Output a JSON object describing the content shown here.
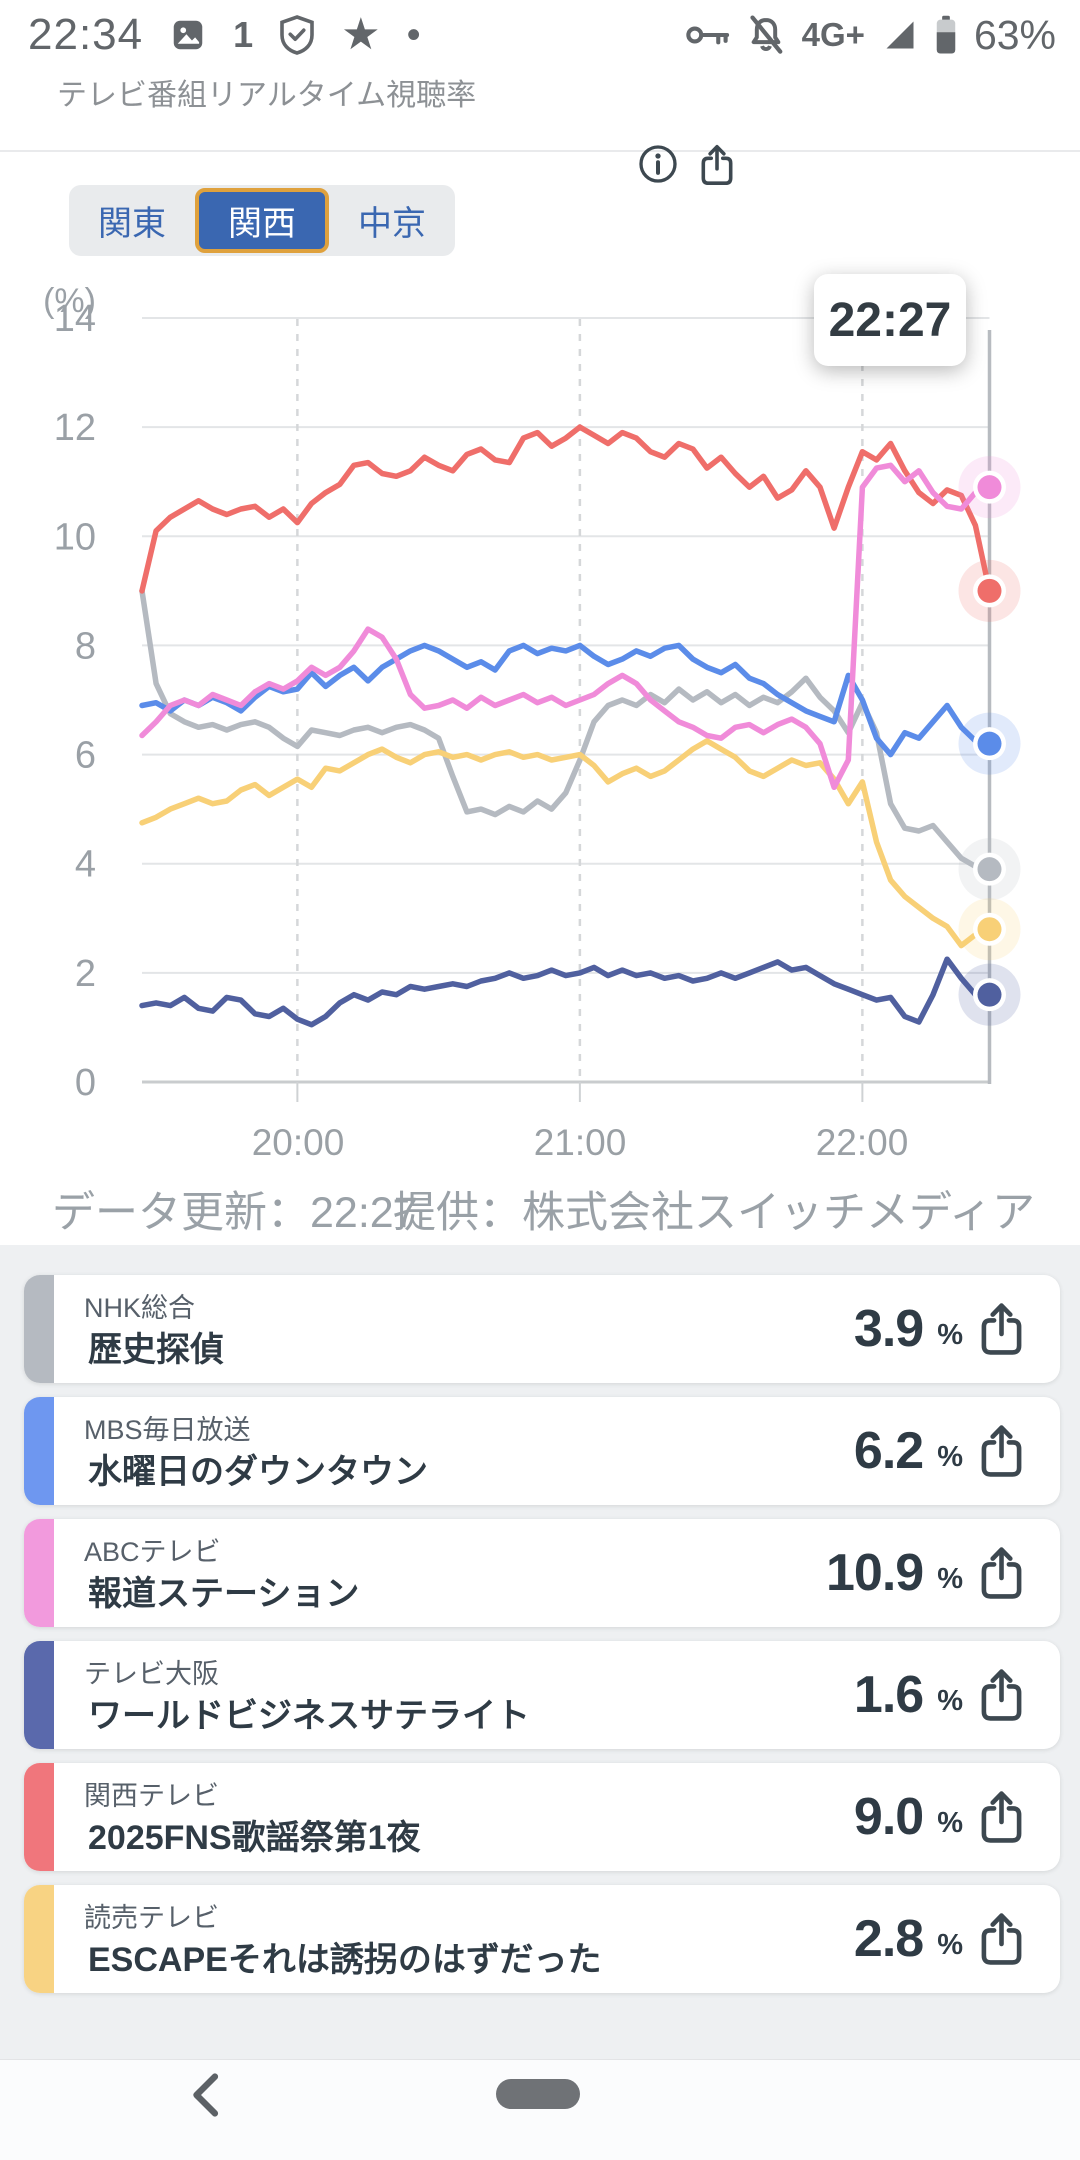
{
  "status_bar": {
    "time": "22:34",
    "network": "4G+",
    "battery": "63%",
    "left_icons": [
      "photo-icon",
      "one-badge-icon",
      "shield-check-icon",
      "star-icon",
      "dot-icon"
    ],
    "right_icons": [
      "key-icon",
      "notifications-off-icon",
      "signal-icon",
      "battery-icon"
    ]
  },
  "header": {
    "title": "テレビ番組リアルタイム視聴率"
  },
  "tabs": {
    "items": [
      {
        "label": "関東",
        "selected": false
      },
      {
        "label": "関西",
        "selected": true
      },
      {
        "label": "中京",
        "selected": false
      }
    ],
    "selected_bg": "#3a67b1",
    "selected_border": "#dfa13d"
  },
  "chart": {
    "unit_label": "(%)",
    "tooltip_time": "22:27",
    "y_tick_labels": [
      "14",
      "12",
      "10",
      "8",
      "6",
      "4",
      "2",
      "0"
    ],
    "x_tick_labels": [
      "20:00",
      "21:00",
      "22:00"
    ],
    "footer": {
      "updated": "データ更新：22:27",
      "provider": "提供：株式会社スイッチメディア"
    }
  },
  "chart_data": {
    "type": "line",
    "title": "テレビ番組リアルタイム視聴率（関西）",
    "ylabel": "(%)",
    "ylim": [
      0,
      14
    ],
    "y_ticks": [
      0,
      2,
      4,
      6,
      8,
      10,
      12,
      14
    ],
    "x_start": "19:27",
    "x_end": "22:27",
    "x_interval_min": 3,
    "x_axis_ticks": [
      "20:00",
      "21:00",
      "22:00"
    ],
    "x_gridline_minutes": [
      33,
      93,
      153
    ],
    "grid": true,
    "legend_position": "none",
    "cursor_time": "22:27",
    "series": [
      {
        "name": "NHK総合",
        "color": "#b5bac1",
        "values": [
          9.0,
          7.3,
          6.75,
          6.6,
          6.5,
          6.55,
          6.45,
          6.55,
          6.6,
          6.5,
          6.3,
          6.15,
          6.45,
          6.4,
          6.35,
          6.45,
          6.5,
          6.4,
          6.5,
          6.55,
          6.45,
          6.3,
          5.6,
          4.95,
          5.0,
          4.9,
          5.05,
          4.95,
          5.15,
          5.0,
          5.3,
          5.9,
          6.6,
          6.9,
          7.0,
          6.9,
          7.1,
          6.95,
          7.2,
          7.0,
          7.15,
          6.95,
          7.1,
          6.9,
          7.05,
          6.95,
          7.15,
          7.4,
          7.05,
          6.8,
          6.4,
          6.95,
          6.4,
          5.1,
          4.65,
          4.6,
          4.7,
          4.4,
          4.1,
          3.95,
          3.9
        ]
      },
      {
        "name": "読売テレビ",
        "color": "#f8d077",
        "values": [
          4.75,
          4.85,
          5.0,
          5.1,
          5.2,
          5.1,
          5.15,
          5.35,
          5.45,
          5.25,
          5.4,
          5.55,
          5.4,
          5.75,
          5.7,
          5.85,
          6.0,
          6.1,
          5.95,
          5.85,
          6.0,
          6.05,
          5.95,
          6.0,
          5.9,
          6.0,
          6.05,
          5.95,
          6.0,
          5.9,
          5.95,
          6.0,
          5.8,
          5.5,
          5.65,
          5.75,
          5.6,
          5.7,
          5.9,
          6.1,
          6.25,
          6.1,
          5.95,
          5.7,
          5.6,
          5.75,
          5.9,
          5.8,
          5.85,
          5.55,
          5.1,
          5.5,
          4.4,
          3.7,
          3.4,
          3.2,
          3.0,
          2.85,
          2.5,
          2.7,
          2.8
        ]
      },
      {
        "name": "テレビ大阪",
        "color": "#50609f",
        "values": [
          1.4,
          1.45,
          1.4,
          1.55,
          1.35,
          1.3,
          1.55,
          1.5,
          1.25,
          1.2,
          1.35,
          1.15,
          1.05,
          1.2,
          1.45,
          1.6,
          1.5,
          1.65,
          1.6,
          1.75,
          1.7,
          1.75,
          1.8,
          1.75,
          1.85,
          1.9,
          2.0,
          1.9,
          1.95,
          2.05,
          1.95,
          2.0,
          2.1,
          1.95,
          2.05,
          1.95,
          2.0,
          1.9,
          1.95,
          1.85,
          1.9,
          2.0,
          1.9,
          2.0,
          2.1,
          2.2,
          2.05,
          2.1,
          1.95,
          1.8,
          1.7,
          1.6,
          1.5,
          1.55,
          1.2,
          1.1,
          1.6,
          2.25,
          1.9,
          1.6,
          1.6
        ]
      },
      {
        "name": "MBS毎日放送",
        "color": "#5b8ce9",
        "values": [
          6.9,
          6.95,
          6.8,
          7.0,
          6.9,
          7.05,
          6.95,
          6.8,
          7.05,
          7.25,
          7.15,
          7.2,
          7.5,
          7.25,
          7.45,
          7.6,
          7.35,
          7.6,
          7.75,
          7.9,
          8.0,
          7.9,
          7.75,
          7.6,
          7.7,
          7.55,
          7.9,
          8.0,
          7.85,
          7.95,
          7.9,
          8.0,
          7.8,
          7.65,
          7.75,
          7.9,
          7.8,
          7.95,
          8.0,
          7.75,
          7.6,
          7.5,
          7.65,
          7.4,
          7.3,
          7.1,
          6.95,
          6.8,
          6.7,
          6.6,
          7.45,
          7.0,
          6.3,
          6.0,
          6.4,
          6.3,
          6.6,
          6.9,
          6.5,
          6.25,
          6.2
        ]
      },
      {
        "name": "関西テレビ",
        "color": "#ef6e6a",
        "values": [
          9.0,
          10.1,
          10.35,
          10.5,
          10.65,
          10.5,
          10.4,
          10.5,
          10.55,
          10.35,
          10.5,
          10.25,
          10.6,
          10.8,
          10.95,
          11.3,
          11.35,
          11.15,
          11.1,
          11.2,
          11.45,
          11.3,
          11.2,
          11.5,
          11.6,
          11.4,
          11.35,
          11.8,
          11.9,
          11.65,
          11.8,
          12.0,
          11.85,
          11.7,
          11.9,
          11.8,
          11.55,
          11.45,
          11.7,
          11.6,
          11.25,
          11.45,
          11.15,
          10.9,
          11.1,
          10.7,
          10.85,
          11.2,
          10.9,
          10.15,
          10.9,
          11.55,
          11.4,
          11.7,
          11.2,
          10.8,
          10.6,
          10.85,
          10.75,
          10.2,
          9.0
        ]
      },
      {
        "name": "ABCテレビ",
        "color": "#f08bd9",
        "values": [
          6.35,
          6.6,
          6.9,
          7.0,
          6.9,
          7.1,
          7.0,
          6.9,
          7.15,
          7.3,
          7.2,
          7.35,
          7.6,
          7.45,
          7.6,
          7.9,
          8.3,
          8.15,
          7.75,
          7.1,
          6.85,
          6.9,
          7.0,
          6.85,
          7.05,
          6.9,
          7.0,
          7.1,
          6.95,
          7.05,
          6.9,
          7.0,
          7.1,
          7.3,
          7.45,
          7.3,
          7.0,
          6.8,
          6.6,
          6.5,
          6.35,
          6.3,
          6.5,
          6.55,
          6.4,
          6.55,
          6.65,
          6.5,
          6.2,
          5.4,
          5.9,
          10.9,
          11.25,
          11.3,
          11.0,
          11.2,
          10.8,
          10.55,
          10.5,
          10.8,
          10.9
        ]
      }
    ]
  },
  "channels": [
    {
      "station": "NHK総合",
      "program": "歴史探偵",
      "value": "3.9",
      "color": "#b5bac1"
    },
    {
      "station": "MBS毎日放送",
      "program": "水曜日のダウンタウン",
      "value": "6.2",
      "color": "#6e97f0"
    },
    {
      "station": "ABCテレビ",
      "program": "報道ステーション",
      "value": "10.9",
      "color": "#f29add"
    },
    {
      "station": "テレビ大阪",
      "program": "ワールドビジネスサテライト",
      "value": "1.6",
      "color": "#5a69ac"
    },
    {
      "station": "関西テレビ",
      "program": "2025FNS歌謡祭第1夜",
      "value": "9.0",
      "color": "#f0767c"
    },
    {
      "station": "読売テレビ",
      "program": "ESCAPEそれは誘拐のはずだった",
      "value": "2.8",
      "color": "#f8d383"
    }
  ],
  "list": {
    "unit": "%"
  }
}
